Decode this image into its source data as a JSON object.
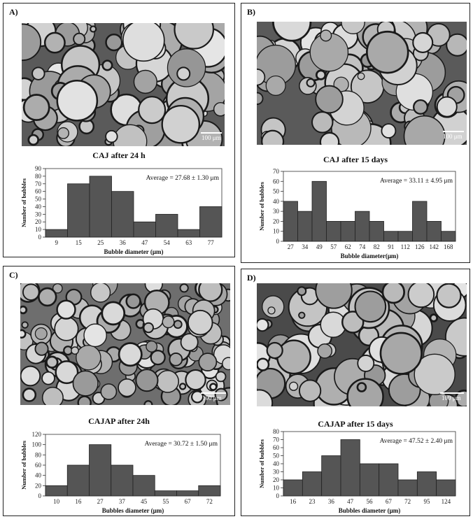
{
  "panels": [
    {
      "label": "A)",
      "scale_text": "100 μm",
      "title": "CAJ  after 24 h",
      "chart_data": {
        "type": "bar",
        "title": "CAJ  after 24 h",
        "xlabel": "Bubble diameter (μm)",
        "ylabel": "Number of bubbles",
        "ylim": [
          0,
          90
        ],
        "ytick_step": 10,
        "categories": [
          "9",
          "15",
          "25",
          "36",
          "47",
          "54",
          "63",
          "77"
        ],
        "values": [
          10,
          70,
          80,
          60,
          20,
          30,
          10,
          40
        ],
        "annotation": "Average = 27.68 ± 1.30 μm",
        "grid": false
      }
    },
    {
      "label": "B)",
      "scale_text": "100 μm",
      "title": "CAJ after 15 days",
      "chart_data": {
        "type": "bar",
        "title": "CAJ after 15 days",
        "xlabel": "Bubble diameter(μm)",
        "ylabel": "Number of bubbles",
        "ylim": [
          0,
          70
        ],
        "ytick_step": 10,
        "categories": [
          "27",
          "34",
          "49",
          "57",
          "62",
          "74",
          "82",
          "91",
          "112",
          "126",
          "142",
          "168"
        ],
        "values": [
          40,
          30,
          60,
          20,
          20,
          30,
          20,
          10,
          10,
          40,
          20,
          10
        ],
        "annotation": "Average = 33.11 ± 4.95 μm",
        "grid": false
      }
    },
    {
      "label": "C)",
      "scale_text": "100 μm",
      "title": "CAJAP  after 24h",
      "chart_data": {
        "type": "bar",
        "title": "CAJAP  after 24h",
        "xlabel": "Bubbles diameter (μm)",
        "ylabel": "Number of bubbles",
        "ylim": [
          0,
          120
        ],
        "ytick_step": 20,
        "categories": [
          "10",
          "16",
          "27",
          "37",
          "45",
          "55",
          "67",
          "72"
        ],
        "values": [
          20,
          60,
          100,
          60,
          40,
          10,
          10,
          20
        ],
        "annotation": "Average = 30.72  ± 1.50 μm",
        "grid": false
      }
    },
    {
      "label": "D)",
      "scale_text": "100 μm",
      "title": "CAJAP  after 15 days",
      "chart_data": {
        "type": "bar",
        "title": "CAJAP  after 15 days",
        "xlabel": "Bubbles diameter (μm)",
        "ylabel": "Number of bubbles",
        "ylim": [
          0,
          80
        ],
        "ytick_step": 10,
        "categories": [
          "16",
          "23",
          "36",
          "47",
          "56",
          "67",
          "72",
          "95",
          "124"
        ],
        "values": [
          20,
          30,
          50,
          70,
          40,
          40,
          20,
          30,
          20
        ],
        "annotation": "Average = 47.52 ± 2.40  μm",
        "grid": false
      }
    }
  ],
  "colors": {
    "bar": "#555555",
    "bar_edge": "#222222",
    "axis": "#333333"
  }
}
